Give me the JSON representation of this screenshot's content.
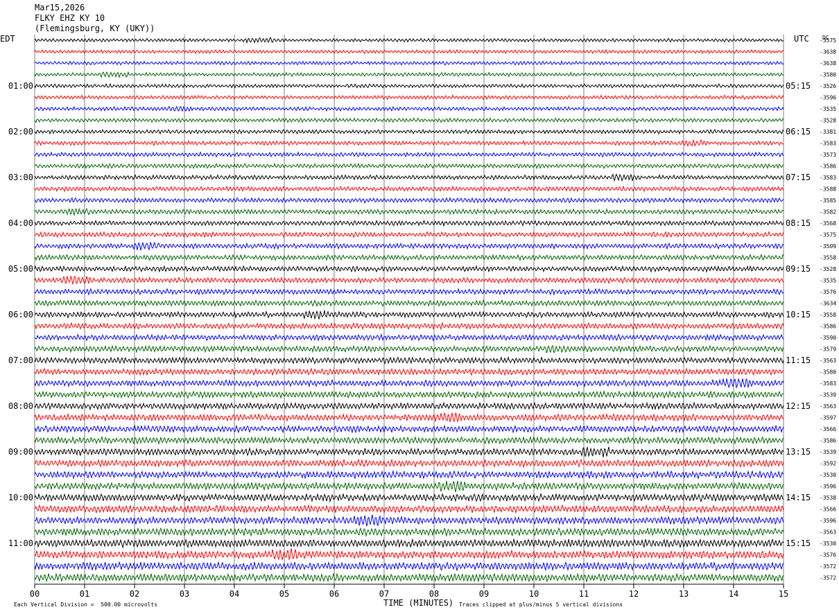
{
  "header": {
    "date": "Mar15,2026",
    "station": "FLKY EHZ KY 10",
    "location": "(Flemingsburg, KY (UKY))"
  },
  "tz_left": "EDT",
  "tz_right": "UTC",
  "dc_label": "DC",
  "footer": {
    "scale_note": "Each Vertical Division =  500.00 microvolts",
    "x_title": "TIME (MINUTES)",
    "clip_note": "Traces clipped at plus/minus 5 vertical divisions"
  },
  "chart_data": {
    "type": "line",
    "title": "FLKY EHZ KY 10 helicorder",
    "xlabel": "TIME (MINUTES)",
    "xlim": [
      0,
      15
    ],
    "x_ticks": [
      "00",
      "01",
      "02",
      "03",
      "04",
      "05",
      "06",
      "07",
      "08",
      "09",
      "10",
      "11",
      "12",
      "13",
      "14",
      "15"
    ],
    "line_minutes": 15,
    "trace_colors": [
      "#000000",
      "#ff0000",
      "#0000ff",
      "#006400"
    ],
    "rows": 48,
    "left_time_labels": [
      "01:00",
      "02:00",
      "03:00",
      "04:00",
      "05:00",
      "06:00",
      "07:00",
      "08:00",
      "09:00",
      "10:00",
      "11:00"
    ],
    "right_time_labels": [
      "05:15",
      "06:15",
      "07:15",
      "08:15",
      "09:15",
      "10:15",
      "11:15",
      "12:15",
      "13:15",
      "14:15",
      "15:15"
    ],
    "dc_offsets": [
      "-3575",
      "-3638",
      "-3638",
      "-3580",
      "-3526",
      "-3596",
      "-3535",
      "-3528",
      "-3381",
      "-3583",
      "-3573",
      "-3586",
      "-3583",
      "-3588",
      "-3585",
      "-3582",
      "-3568",
      "-3575",
      "-3509",
      "-3558",
      "-3528",
      "-3535",
      "-3576",
      "-3634",
      "-3558",
      "-3586",
      "-3590",
      "-3579",
      "-3563",
      "-3580",
      "-3583",
      "-3539",
      "-3563",
      "-3597",
      "-3566",
      "-3586",
      "-3539",
      "-3592",
      "-3530",
      "-3596",
      "-3538",
      "-3566",
      "-3596",
      "-3563",
      "-3530",
      "-3576",
      "-3572",
      "-3572"
    ]
  }
}
